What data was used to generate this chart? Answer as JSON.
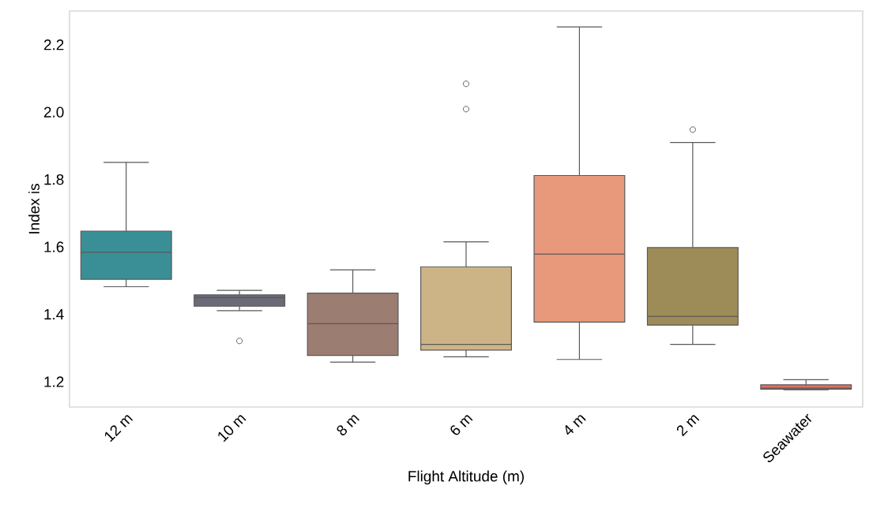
{
  "chart_data": {
    "type": "box",
    "xlabel": "Flight Altitude (m)",
    "ylabel": "Index is",
    "categories": [
      "12 m",
      "10 m",
      "8 m",
      "6 m",
      "4 m",
      "2 m",
      "Seawater"
    ],
    "colors": [
      "#3a8f96",
      "#6a6a78",
      "#9c7d72",
      "#cdb486",
      "#e8987b",
      "#9e8c58",
      "#d9736a"
    ],
    "boxes": [
      {
        "low": 1.482,
        "q1": 1.504,
        "median": 1.584,
        "q3": 1.647,
        "high": 1.851
      },
      {
        "low": 1.411,
        "q1": 1.424,
        "median": 1.45,
        "q3": 1.458,
        "high": 1.471,
        "outliers": [
          1.321
        ]
      },
      {
        "low": 1.258,
        "q1": 1.278,
        "median": 1.372,
        "q3": 1.463,
        "high": 1.532
      },
      {
        "low": 1.274,
        "q1": 1.294,
        "median": 1.311,
        "q3": 1.541,
        "high": 1.615,
        "outliers": [
          2.009,
          2.084
        ]
      },
      {
        "low": 1.266,
        "q1": 1.377,
        "median": 1.579,
        "q3": 1.812,
        "high": 2.253
      },
      {
        "low": 1.311,
        "q1": 1.368,
        "median": 1.394,
        "q3": 1.598,
        "high": 1.91,
        "outliers": [
          1.948
        ]
      },
      {
        "low": 1.176,
        "q1": 1.178,
        "median": 1.181,
        "q3": 1.191,
        "high": 1.206
      }
    ],
    "ylim": [
      1.125,
      2.3
    ],
    "yticks": [
      1.2,
      1.4,
      1.6,
      1.8,
      {
        "value": 2,
        "label": "2.0"
      },
      2.2
    ]
  }
}
